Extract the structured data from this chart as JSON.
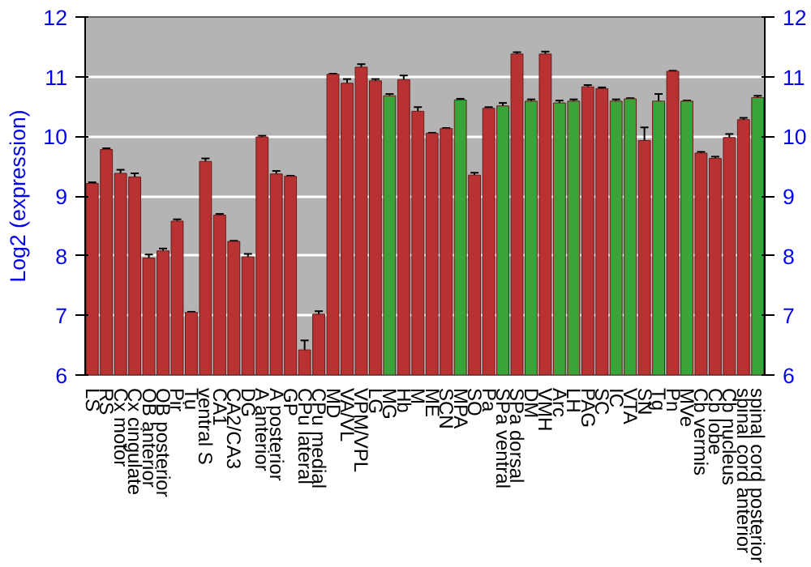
{
  "chart_data": {
    "type": "bar",
    "ylabel": "Log2 (expression)",
    "categories": [
      "LS",
      "RS",
      "Cx motor",
      "Cx cingulate",
      "OB anterior",
      "OB posterior",
      "Pir",
      "Tu",
      "ventral S",
      "CA1",
      "CA2/CA3",
      "DG",
      "A anterior",
      "A posterior",
      "GP",
      "CPu lateral",
      "CPu medial",
      "MD",
      "VA/VL",
      "VPM/VPL",
      "LG",
      "MG",
      "Hb",
      "M",
      "ME",
      "SCN",
      "MPA",
      "SO",
      "Pa",
      "SPa ventral",
      "SPa dorsal",
      "DM",
      "VMH",
      "Arc",
      "LH",
      "PAG",
      "SC",
      "IC",
      "VTA",
      "SN",
      "Tg",
      "Pn",
      "MVe",
      "Cb vermis",
      "Cb lobe",
      "Cb nucleus",
      "spinal cord anterior",
      "spinal cord posterior"
    ],
    "values": [
      9.21,
      9.78,
      9.38,
      9.32,
      7.96,
      8.08,
      8.58,
      7.05,
      9.58,
      8.68,
      8.24,
      7.98,
      9.99,
      9.37,
      9.33,
      6.42,
      7.02,
      11.04,
      10.89,
      11.16,
      10.93,
      10.68,
      10.95,
      10.42,
      10.05,
      10.13,
      10.61,
      9.35,
      10.47,
      10.51,
      11.38,
      10.59,
      11.38,
      10.56,
      10.59,
      10.83,
      10.8,
      10.59,
      10.63,
      9.93,
      10.59,
      11.09,
      10.59,
      9.72,
      9.63,
      9.98,
      10.28,
      10.65
    ],
    "errors": [
      0.02,
      0.02,
      0.06,
      0.06,
      0.06,
      0.04,
      0.03,
      0.01,
      0.05,
      0.02,
      0.01,
      0.05,
      0.02,
      0.05,
      0.01,
      0.16,
      0.05,
      0.01,
      0.07,
      0.05,
      0.03,
      0.03,
      0.07,
      0.07,
      0.01,
      0.01,
      0.02,
      0.04,
      0.02,
      0.05,
      0.03,
      0.03,
      0.04,
      0.04,
      0.03,
      0.03,
      0.02,
      0.03,
      0.01,
      0.22,
      0.12,
      0.01,
      0.01,
      0.02,
      0.03,
      0.06,
      0.03,
      0.03
    ],
    "colors": [
      "#b83232",
      "#b83232",
      "#b83232",
      "#b83232",
      "#b83232",
      "#b83232",
      "#b83232",
      "#b83232",
      "#b83232",
      "#b83232",
      "#b83232",
      "#b83232",
      "#b83232",
      "#b83232",
      "#b83232",
      "#b83232",
      "#b83232",
      "#b83232",
      "#b83232",
      "#b83232",
      "#b83232",
      "#3aa33a",
      "#b83232",
      "#b83232",
      "#b83232",
      "#b83232",
      "#3aa33a",
      "#b83232",
      "#b83232",
      "#3aa33a",
      "#b83232",
      "#3aa33a",
      "#b83232",
      "#3aa33a",
      "#3aa33a",
      "#b83232",
      "#b83232",
      "#3aa33a",
      "#3aa33a",
      "#b83232",
      "#3aa33a",
      "#b83232",
      "#3aa33a",
      "#b83232",
      "#b83232",
      "#b83232",
      "#b83232",
      "#3aa33a"
    ],
    "ylim": [
      6,
      12
    ],
    "yticks": [
      6,
      7,
      8,
      9,
      10,
      11,
      12
    ],
    "y2lim": [
      6,
      12
    ],
    "y2ticks": [
      6,
      7,
      8,
      9,
      10,
      11,
      12
    ],
    "grid": "y"
  }
}
